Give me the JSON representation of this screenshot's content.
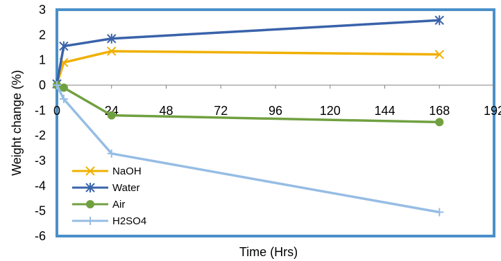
{
  "chart_data": {
    "type": "line",
    "title": "",
    "xlabel": "Time (Hrs)",
    "ylabel": "Weight change (%)",
    "xlim": [
      0,
      192
    ],
    "ylim": [
      -6,
      3
    ],
    "x_ticks": [
      "0",
      "24",
      "48",
      "72",
      "96",
      "120",
      "144",
      "168",
      "192"
    ],
    "y_ticks": [
      "3",
      "2",
      "1",
      "0",
      "-1",
      "-2",
      "-3",
      "-4",
      "-5",
      "-6"
    ],
    "grid": false,
    "legend_position": "bottom-left",
    "plot_border_color": "#4a90c8",
    "series": [
      {
        "name": "NaOH",
        "color": "#f0b000",
        "marker": "x",
        "x": [
          0,
          3,
          24,
          168
        ],
        "y": [
          0.05,
          0.9,
          1.35,
          1.22
        ]
      },
      {
        "name": "Water",
        "color": "#3a62aa",
        "marker": "asterisk",
        "x": [
          0,
          3,
          24,
          168
        ],
        "y": [
          0.05,
          1.55,
          1.85,
          2.58
        ]
      },
      {
        "name": "Air",
        "color": "#70a040",
        "marker": "circle",
        "x": [
          0,
          3,
          24,
          168
        ],
        "y": [
          0.0,
          -0.1,
          -1.2,
          -1.47
        ]
      },
      {
        "name": "H2SO4",
        "color": "#96bde4",
        "marker": "plus",
        "x": [
          0,
          3,
          24,
          168
        ],
        "y": [
          0.0,
          -0.55,
          -2.72,
          -5.05
        ]
      }
    ]
  }
}
